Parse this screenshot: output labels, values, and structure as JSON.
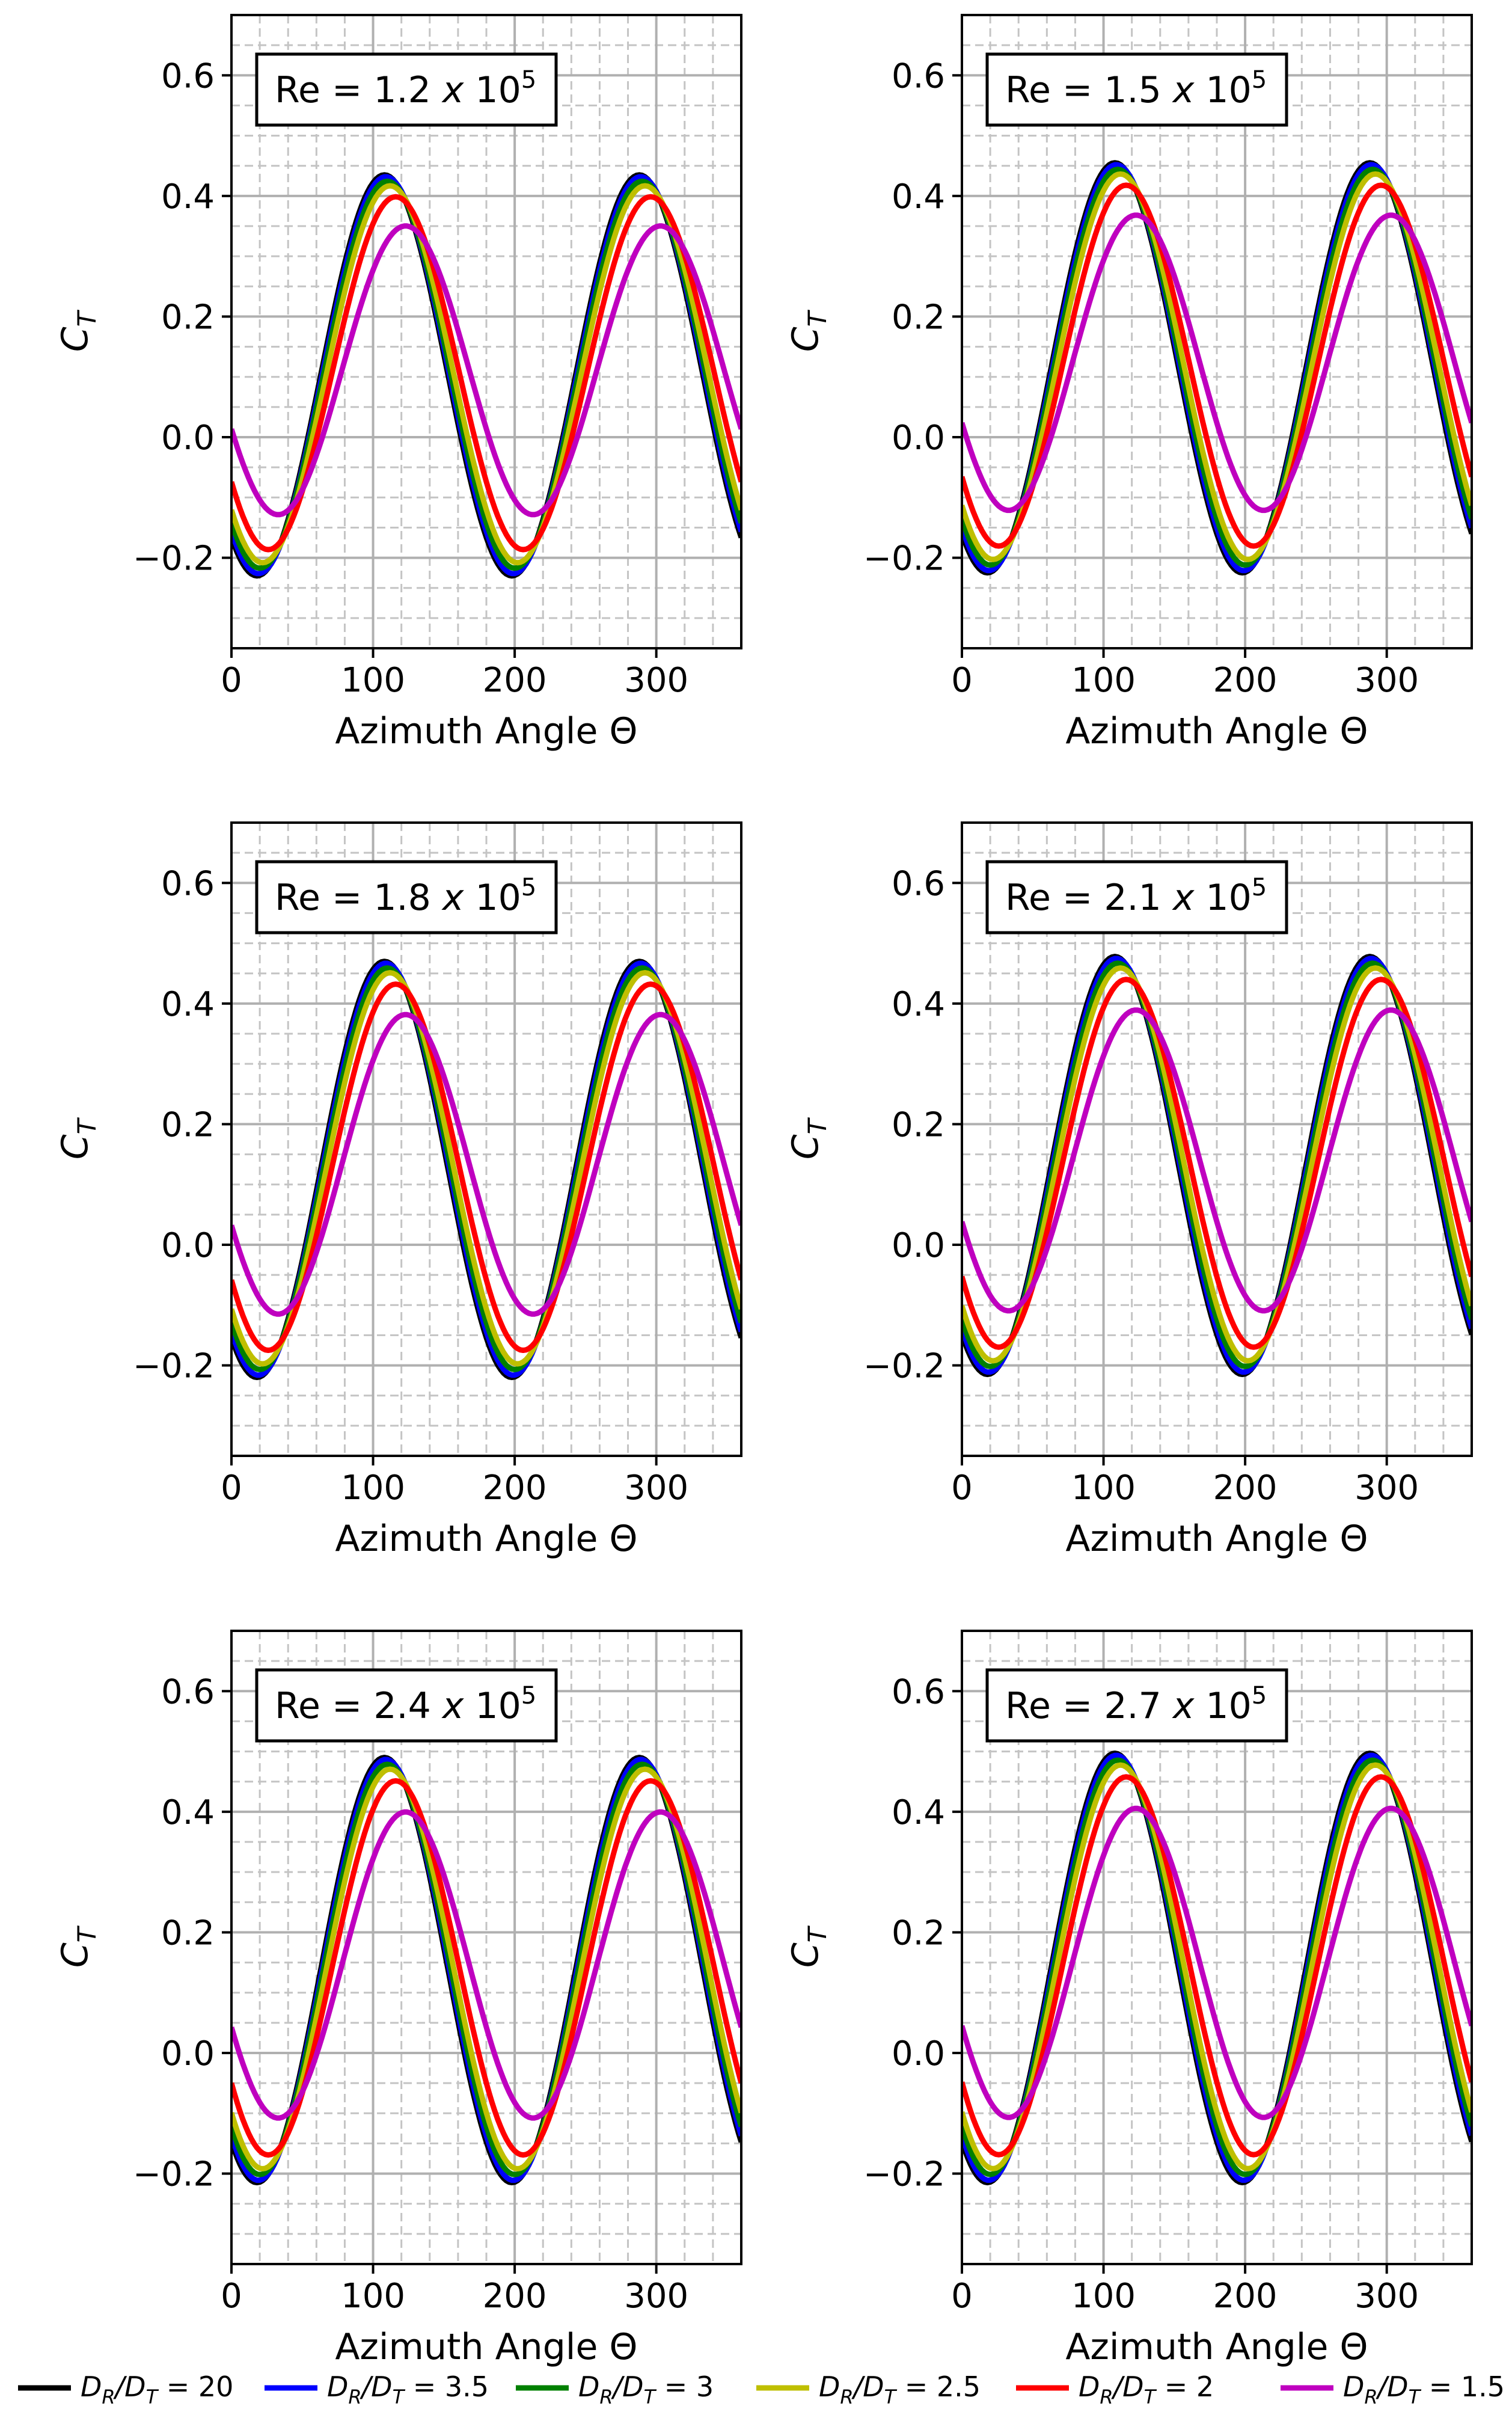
{
  "chart_data": {
    "type": "line",
    "layout": "3x2 grid of subplots",
    "xlabel": "Azimuth Angle Θ",
    "ylabel": "C_T",
    "xlim": [
      0,
      360
    ],
    "ylim": [
      -0.35,
      0.7
    ],
    "xticks": [
      0,
      100,
      200,
      300
    ],
    "xtick_labels": [
      "0",
      "100",
      "200",
      "300"
    ],
    "yticks": [
      -0.2,
      0.0,
      0.2,
      0.4,
      0.6
    ],
    "ytick_labels": [
      "−0.2",
      "0.0",
      "0.2",
      "0.4",
      "0.6"
    ],
    "grid": "major solid, minor dashed",
    "legend_placement": "bottom",
    "series": [
      {
        "name": "D_R/D_T = 20",
        "label_main": "D",
        "sub1": "R",
        "label_mid": "/D",
        "sub2": "T",
        "label_tail": " = 20",
        "color": "#000000",
        "phase_deg": 18,
        "amp_scale": 1.0
      },
      {
        "name": "D_R/D_T = 3.5",
        "label_main": "D",
        "sub1": "R",
        "label_mid": "/D",
        "sub2": "T",
        "label_tail": " = 3.5",
        "color": "#0000ff",
        "phase_deg": 19,
        "amp_scale": 0.99
      },
      {
        "name": "D_R/D_T = 3",
        "label_main": "D",
        "sub1": "R",
        "label_mid": "/D",
        "sub2": "T",
        "label_tail": " = 3",
        "color": "#008000",
        "phase_deg": 20,
        "amp_scale": 0.965
      },
      {
        "name": "D_R/D_T = 2.5",
        "label_main": "D",
        "sub1": "R",
        "label_mid": "/D",
        "sub2": "T",
        "label_tail": " = 2.5",
        "color": "#bfbf00",
        "phase_deg": 22,
        "amp_scale": 0.94
      },
      {
        "name": "D_R/D_T = 2",
        "label_main": "D",
        "sub1": "R",
        "label_mid": "/D",
        "sub2": "T",
        "label_tail": " = 2",
        "color": "#ff0000",
        "phase_deg": 26,
        "amp_scale": 0.88
      },
      {
        "name": "D_R/D_T = 1.5",
        "label_main": "D",
        "sub1": "R",
        "label_mid": "/D",
        "sub2": "T",
        "label_tail": " = 1.5",
        "color": "#bf00bf",
        "phase_deg": 33,
        "amp_scale": 0.72
      }
    ],
    "panels": [
      {
        "annotation_base": "Re = 1.2 ",
        "annotation_x": "x",
        "annotation_exp_base": " 10",
        "annotation_exp": "5",
        "peak": 0.435,
        "trough": -0.23
      },
      {
        "annotation_base": "Re = 1.5 ",
        "annotation_x": "x",
        "annotation_exp_base": " 10",
        "annotation_exp": "5",
        "peak": 0.455,
        "trough": -0.225
      },
      {
        "annotation_base": "Re = 1.8 ",
        "annotation_x": "x",
        "annotation_exp_base": " 10",
        "annotation_exp": "5",
        "peak": 0.47,
        "trough": -0.22
      },
      {
        "annotation_base": "Re = 2.1 ",
        "annotation_x": "x",
        "annotation_exp_base": " 10",
        "annotation_exp": "5",
        "peak": 0.478,
        "trough": -0.215
      },
      {
        "annotation_base": "Re = 2.4 ",
        "annotation_x": "x",
        "annotation_exp_base": " 10",
        "annotation_exp": "5",
        "peak": 0.49,
        "trough": -0.215
      },
      {
        "annotation_base": "Re = 2.7 ",
        "annotation_x": "x",
        "annotation_exp_base": " 10",
        "annotation_exp": "5",
        "peak": 0.497,
        "trough": -0.215
      }
    ]
  }
}
